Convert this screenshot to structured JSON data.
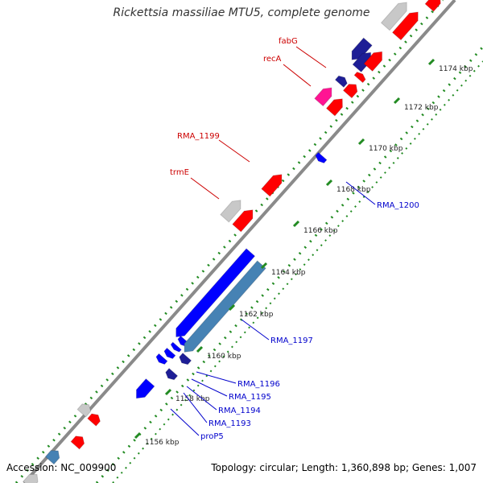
{
  "title": "Rickettsia massiliae MTU5, complete genome",
  "accession": "Accession: NC_009900",
  "summary": "Topology: circular; Length: 1,360,898 bp; Genes: 1,007",
  "colors": {
    "forward_cds": "#ff0000",
    "reverse_cds": "#0000ff",
    "trna": "#c8c8c8",
    "rrna": "#4682b4",
    "misc": "#ff1493",
    "other": "#1e1e96",
    "backbone": "#7f7f7f",
    "ticks": "#228b22",
    "forward_label": "#cc0000",
    "reverse_label": "#0000cc"
  },
  "scale_ticks": [
    "1156 kbp",
    "1158 kbp",
    "1160 kbp",
    "1162 kbp",
    "1164 kbp",
    "1166 kbp",
    "1168 kbp",
    "1170 kbp",
    "1172 kbp",
    "1174 kbp"
  ],
  "gene_labels_forward": [
    "fabG",
    "recA",
    "RMA_1199",
    "trmE"
  ],
  "gene_labels_reverse": [
    "RMA_1200",
    "RMA_1197",
    "RMA_1196",
    "RMA_1195",
    "RMA_1194",
    "RMA_1193",
    "proP5"
  ]
}
